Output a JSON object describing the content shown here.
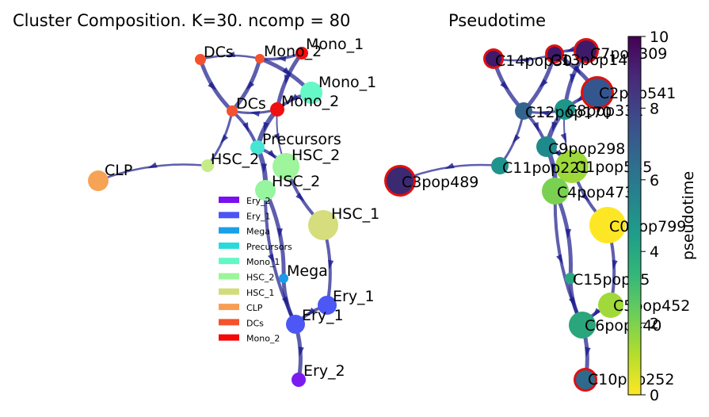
{
  "left_panel": {
    "title": "Cluster Composition. K=30. ncomp = 80",
    "nodes": [
      {
        "label": "DCs",
        "color": "#f4512e"
      },
      {
        "label": "Mono_2",
        "color": "#f4512e"
      },
      {
        "label": "Mono_1",
        "color": "#f00e0e"
      },
      {
        "label": "Mono_1",
        "color": "#67f8c8"
      },
      {
        "label": "DCs",
        "color": "#f4512e"
      },
      {
        "label": "Mono_2",
        "color": "#f00e0e"
      },
      {
        "label": "Precursors",
        "color": "#45e7d4"
      },
      {
        "label": "HSC_2",
        "color": "#9ef59c"
      },
      {
        "label": "HSC_2",
        "color": "#96f59e"
      },
      {
        "label": "HSC_2",
        "color": "#c6ec8a"
      },
      {
        "label": "CLP",
        "color": "#f7a356"
      },
      {
        "label": "HSC_1",
        "color": "#d5dd7c"
      },
      {
        "label": "Mega",
        "color": "#1c9ae8"
      },
      {
        "label": "Ery_1",
        "color": "#4c57f5"
      },
      {
        "label": "Ery_1",
        "color": "#4c57f5"
      },
      {
        "label": "Ery_2",
        "color": "#7b1bef"
      }
    ],
    "legend": [
      {
        "label": "Ery_2",
        "color": "#7a0ff0"
      },
      {
        "label": "Ery_1",
        "color": "#4b55f5"
      },
      {
        "label": "Mega",
        "color": "#1aa0e6"
      },
      {
        "label": "Precursors",
        "color": "#29dada"
      },
      {
        "label": "Mono_1",
        "color": "#64f7c6"
      },
      {
        "label": "HSC_2",
        "color": "#9cf59a"
      },
      {
        "label": "HSC_1",
        "color": "#d3dc7c"
      },
      {
        "label": "CLP",
        "color": "#f79e55"
      },
      {
        "label": "DCs",
        "color": "#f4512e"
      },
      {
        "label": "Mono_2",
        "color": "#f40808"
      }
    ]
  },
  "right_panel": {
    "title": "Pseudotime",
    "nodes": [
      {
        "label": "C14pop30",
        "value": 9.3,
        "color": "#3f1a6a",
        "terminal": true
      },
      {
        "label": "C13pop145",
        "value": 8.9,
        "color": "#3f1a6a",
        "terminal": true
      },
      {
        "label": "C7pop309",
        "value": 9.5,
        "color": "#3f1a6a",
        "terminal": true
      },
      {
        "label": "C2pop541",
        "value": 7.7,
        "color": "#34568f",
        "terminal": true
      },
      {
        "label": "C12pop170",
        "value": 6.8,
        "color": "#33648d",
        "terminal": false
      },
      {
        "label": "C8pop331",
        "value": 5.2,
        "color": "#1f968a",
        "terminal": false
      },
      {
        "label": "C9pop298",
        "value": 5.6,
        "color": "#1f8a8c",
        "terminal": false
      },
      {
        "label": "C11pop221",
        "value": 5.5,
        "color": "#1f948c",
        "terminal": false
      },
      {
        "label": "C3pop489",
        "value": 8.7,
        "color": "#3b2a72",
        "terminal": true
      },
      {
        "label": "C1pop555",
        "value": 2.3,
        "color": "#9dd93a",
        "terminal": false
      },
      {
        "label": "C4pop473",
        "value": 2.8,
        "color": "#7ad151",
        "terminal": false
      },
      {
        "label": "C0pop799",
        "value": 0.0,
        "color": "#fde725",
        "terminal": false
      },
      {
        "label": "C15pop95",
        "value": 4.6,
        "color": "#29a87f",
        "terminal": false
      },
      {
        "label": "C5pop452",
        "value": 2.4,
        "color": "#a0d93a",
        "terminal": false
      },
      {
        "label": "C6pop440",
        "value": 4.0,
        "color": "#2aa57c",
        "terminal": false
      },
      {
        "label": "C10pop252",
        "value": 6.8,
        "color": "#2d6a8e",
        "terminal": true
      }
    ],
    "colorbar": {
      "label": "pseudotime",
      "ticks": [
        "0",
        "2",
        "4",
        "6",
        "8",
        "10"
      ],
      "range": [
        0,
        10
      ],
      "colormap": [
        "#fde725",
        "#b5de2b",
        "#6ece58",
        "#35b779",
        "#1f9e89",
        "#26828e",
        "#31688e",
        "#3e4989",
        "#482878",
        "#440154"
      ]
    }
  },
  "edge_color": "#1a1a8c",
  "terminal_ring_color": "#e01010"
}
